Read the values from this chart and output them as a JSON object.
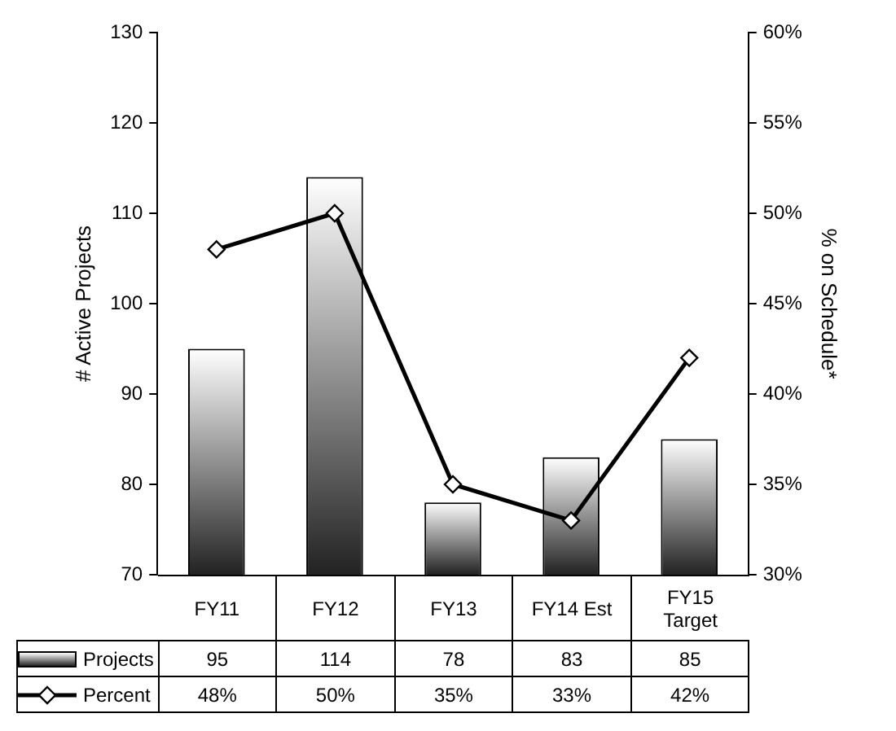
{
  "chart_data": {
    "type": "bar",
    "ylabel": "# Active Projects",
    "y2label": "% on Schedule*",
    "categories": [
      "FY11",
      "FY12",
      "FY13",
      "FY14 Est",
      "FY15 Target"
    ],
    "series": [
      {
        "name": "Projects",
        "type": "bar",
        "color": "#222222",
        "values": [
          95,
          114,
          78,
          83,
          85
        ],
        "value_labels": [
          "95",
          "114",
          "78",
          "83",
          "85"
        ]
      },
      {
        "name": "Percent",
        "type": "line",
        "axis": "y2",
        "color": "#000000",
        "marker": "diamond",
        "values": [
          48,
          50,
          35,
          33,
          42
        ],
        "value_labels": [
          "48%",
          "50%",
          "35%",
          "33%",
          "42%"
        ]
      }
    ],
    "ylim": [
      70,
      130
    ],
    "yticks": [
      70,
      80,
      90,
      100,
      110,
      120,
      130
    ],
    "y2lim": [
      30,
      60
    ],
    "y2ticks": [
      {
        "value": 30,
        "label": "30%"
      },
      {
        "value": 35,
        "label": "35%"
      },
      {
        "value": 40,
        "label": "40%"
      },
      {
        "value": 45,
        "label": "45%"
      },
      {
        "value": 50,
        "label": "50%"
      },
      {
        "value": 55,
        "label": "55%"
      },
      {
        "value": 60,
        "label": "60%"
      }
    ],
    "grid": false,
    "legend": "bottom left"
  }
}
